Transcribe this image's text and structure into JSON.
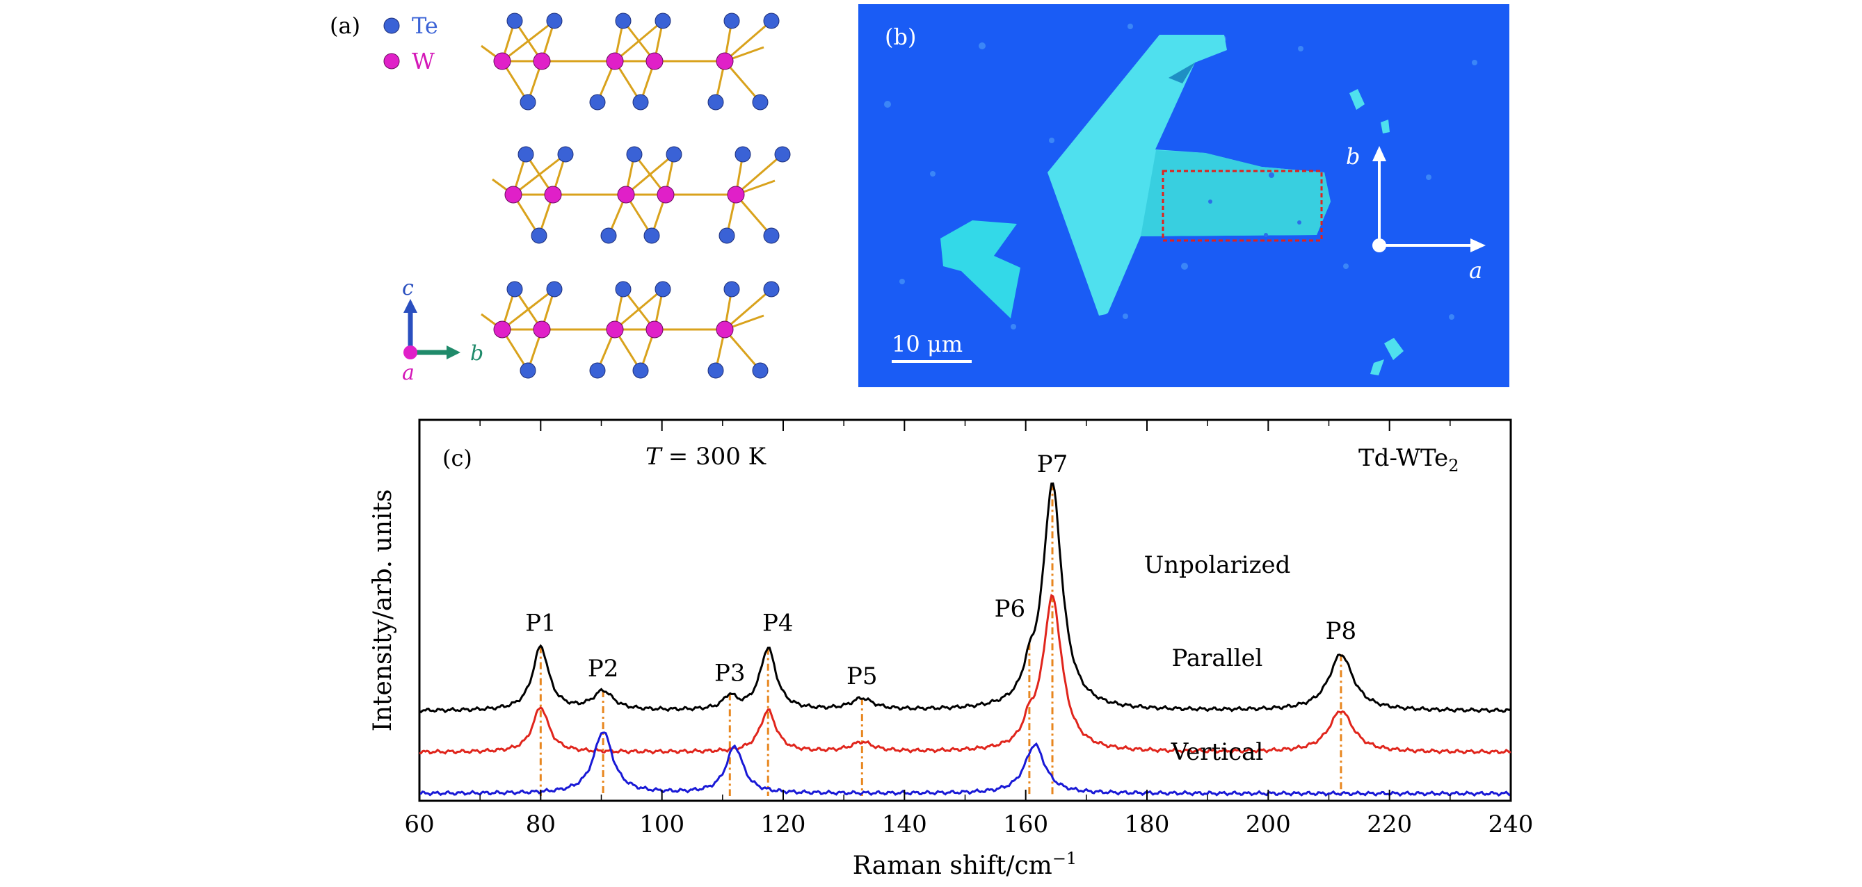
{
  "panel_a": {
    "label": "(a)",
    "legend": [
      {
        "name": "Te",
        "color": "#3a62d6"
      },
      {
        "name": "W",
        "color": "#e020c8"
      }
    ],
    "axes": {
      "c": "c",
      "b": "b",
      "a": "a"
    },
    "bond_color": "#d9a21c"
  },
  "panel_b": {
    "label": "(b)",
    "scale_bar": "10 μm",
    "axis_b": "b",
    "axis_a": "a",
    "background_color": "#1a5cf5",
    "flake_color": "#33d9e8"
  },
  "chart_data": {
    "type": "line",
    "panel_label": "(c)",
    "temperature_label": "T = 300 K",
    "temperature_symbol": "T",
    "temperature_value": "= 300 K",
    "material_main": "Td-WTe",
    "material_sub": "2",
    "xlabel": "Raman shift/cm",
    "xlabel_sup": "−1",
    "ylabel": "Intensity/arb. units",
    "xlim": [
      60,
      240
    ],
    "xticks": [
      60,
      80,
      100,
      120,
      140,
      160,
      180,
      200,
      220,
      240
    ],
    "peak_lines_color": "#e8861e",
    "peaks": [
      {
        "label": "P1",
        "x": 80
      },
      {
        "label": "P2",
        "x": 90.3
      },
      {
        "label": "P3",
        "x": 111.2
      },
      {
        "label": "P4",
        "x": 117.5
      },
      {
        "label": "P5",
        "x": 133
      },
      {
        "label": "P6",
        "x": 160.6
      },
      {
        "label": "P7",
        "x": 164.4
      },
      {
        "label": "P8",
        "x": 212
      }
    ],
    "series": [
      {
        "name": "Unpolarized",
        "color": "#000000",
        "baseline": 0.36,
        "peaks": [
          {
            "x": 80,
            "h": 0.34,
            "w": 1.6
          },
          {
            "x": 90.3,
            "h": 0.1,
            "w": 2.0
          },
          {
            "x": 111.2,
            "h": 0.07,
            "w": 1.3
          },
          {
            "x": 117.5,
            "h": 0.33,
            "w": 1.6
          },
          {
            "x": 133,
            "h": 0.06,
            "w": 2.2
          },
          {
            "x": 160.6,
            "h": 0.12,
            "w": 1.2
          },
          {
            "x": 164.4,
            "h": 1.2,
            "w": 1.9
          },
          {
            "x": 212,
            "h": 0.3,
            "w": 2.4
          }
        ]
      },
      {
        "name": "Parallel",
        "color": "#e0251c",
        "baseline": 0.14,
        "peaks": [
          {
            "x": 80,
            "h": 0.24,
            "w": 1.6
          },
          {
            "x": 117.5,
            "h": 0.22,
            "w": 1.6
          },
          {
            "x": 133,
            "h": 0.05,
            "w": 2.2
          },
          {
            "x": 160.6,
            "h": 0.1,
            "w": 1.2
          },
          {
            "x": 164.4,
            "h": 0.82,
            "w": 1.9
          },
          {
            "x": 212,
            "h": 0.22,
            "w": 2.4
          }
        ]
      },
      {
        "name": "Vertical",
        "color": "#1919d6",
        "baseline": -0.08,
        "peaks": [
          {
            "x": 90.3,
            "h": 0.33,
            "w": 1.9
          },
          {
            "x": 112,
            "h": 0.25,
            "w": 1.7
          },
          {
            "x": 161.5,
            "h": 0.26,
            "w": 2.0
          }
        ]
      }
    ]
  }
}
